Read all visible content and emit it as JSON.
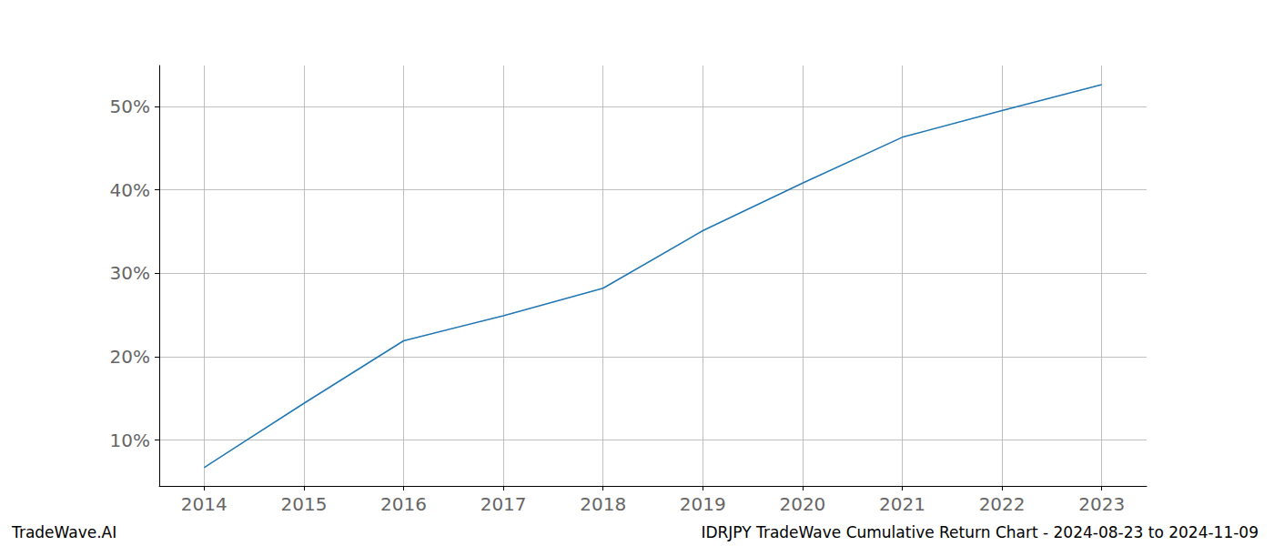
{
  "chart_data": {
    "type": "line",
    "title": "IDRJPY TradeWave Cumulative Return Chart - 2024-08-23 to 2024-11-09",
    "annotations": [
      "TradeWave.AI"
    ],
    "x": [
      2014,
      2015,
      2016,
      2017,
      2018,
      2019,
      2020,
      2021,
      2022,
      2023
    ],
    "values": [
      6.7,
      14.4,
      21.9,
      24.9,
      28.2,
      35.1,
      40.8,
      46.3,
      49.5,
      52.6
    ],
    "color": "#1f77b4",
    "xlim": [
      2013.55,
      2023.45
    ],
    "xticks": [
      2014,
      2015,
      2016,
      2017,
      2018,
      2019,
      2020,
      2021,
      2022,
      2023
    ],
    "ylim": [
      4.5,
      54.9
    ],
    "yticks": [
      {
        "value": 10,
        "label": "10%"
      },
      {
        "value": 20,
        "label": "20%"
      },
      {
        "value": 30,
        "label": "30%"
      },
      {
        "value": 40,
        "label": "40%"
      },
      {
        "value": 50,
        "label": "50%"
      }
    ],
    "grid": true
  }
}
